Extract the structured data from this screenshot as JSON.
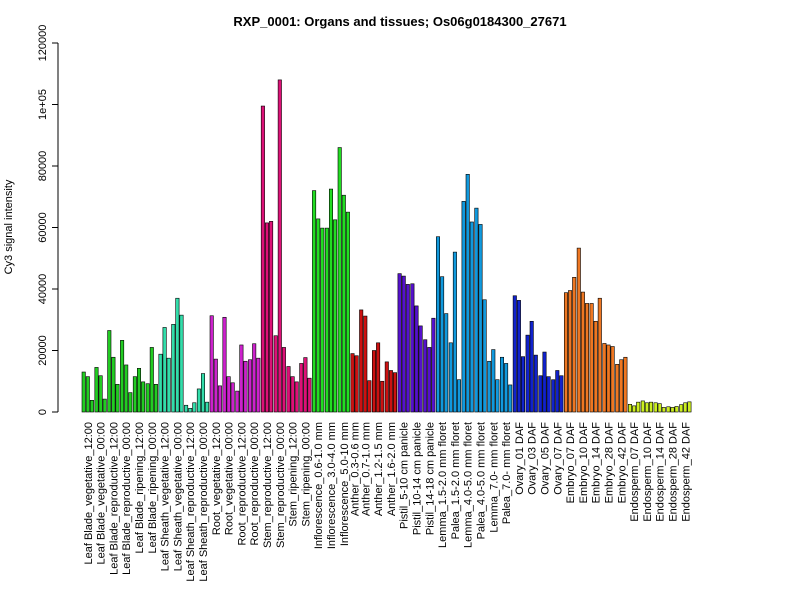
{
  "chart_data": {
    "type": "bar",
    "title": "RXP_0001: Organs and tissues; Os06g0184300_27671",
    "xlabel": "",
    "ylabel": "Cy3 signal intensity",
    "ylim": [
      0,
      120000
    ],
    "yticks": [
      {
        "value": 0,
        "label": "0"
      },
      {
        "value": 20000,
        "label": "20000"
      },
      {
        "value": 40000,
        "label": "40000"
      },
      {
        "value": 60000,
        "label": "60000"
      },
      {
        "value": 80000,
        "label": "80000"
      },
      {
        "value": 100000,
        "label": "1e+05"
      },
      {
        "value": 120000,
        "label": "120000"
      }
    ],
    "grid": false,
    "legend": "none",
    "groups": [
      {
        "color": "#22cc22",
        "values": [
          13000,
          11500,
          3800
        ],
        "label": "Leaf Blade_vegetative_12:00"
      },
      {
        "color": "#22cc22",
        "values": [
          14500,
          11800,
          4200
        ],
        "label": "Leaf Blade_vegetative_00:00"
      },
      {
        "color": "#22cc22",
        "values": [
          26500,
          17800,
          9000
        ],
        "label": "Leaf Blade_reproductive_12:00"
      },
      {
        "color": "#22cc22",
        "values": [
          23300,
          15300,
          6300
        ],
        "label": "Leaf Blade_reproductive_00:00"
      },
      {
        "color": "#22cc22",
        "values": [
          11500,
          14200,
          9800
        ],
        "label": "Leaf Blade_ripening_12:00"
      },
      {
        "color": "#22cc22",
        "values": [
          9200,
          21000,
          9000
        ],
        "label": "Leaf Blade_ripening_00:00"
      },
      {
        "color": "#33ddaa",
        "values": [
          18800,
          27500,
          17500
        ],
        "label": "Leaf Sheath_vegetative_12:00"
      },
      {
        "color": "#33ddaa",
        "values": [
          28500,
          37000,
          31500
        ],
        "label": "Leaf Sheath_vegetative_00:00"
      },
      {
        "color": "#33ddaa",
        "values": [
          2200,
          1200,
          3000
        ],
        "label": "Leaf Sheath_reproductive_12:00"
      },
      {
        "color": "#33ddaa",
        "values": [
          7500,
          12500,
          3200
        ],
        "label": "Leaf Sheath_reproductive_00:00"
      },
      {
        "color": "#cc22cc",
        "values": [
          31300,
          17200,
          8500
        ],
        "label": "Root_vegetative_12:00"
      },
      {
        "color": "#cc22cc",
        "values": [
          30800,
          11500,
          9500
        ],
        "label": "Root_vegetative_00:00"
      },
      {
        "color": "#cc22cc",
        "values": [
          6800,
          21800,
          16500
        ],
        "label": "Root_reproductive_12:00"
      },
      {
        "color": "#cc22cc",
        "values": [
          17000,
          22200,
          17500
        ],
        "label": "Root_reproductive_00:00"
      },
      {
        "color": "#dd1177",
        "values": [
          99500,
          61500,
          62000
        ],
        "label": "Stem_reproductive_12:00"
      },
      {
        "color": "#dd1177",
        "values": [
          24800,
          108000,
          21000
        ],
        "label": "Stem_reproductive_00:00"
      },
      {
        "color": "#dd1177",
        "values": [
          14800,
          11500,
          9800
        ],
        "label": "Stem_ripening_12:00"
      },
      {
        "color": "#dd1177",
        "values": [
          15800,
          17700,
          11000
        ],
        "label": "Stem_ripening_00:00"
      },
      {
        "color": "#22dd22",
        "values": [
          72000,
          62800,
          59800
        ],
        "label": "Inflorescence_0.6-1.0 mm"
      },
      {
        "color": "#22dd22",
        "values": [
          59800,
          72500,
          62500
        ],
        "label": "Inflorescence_3.0-4.0 mm"
      },
      {
        "color": "#22dd22",
        "values": [
          86000,
          70500,
          65000
        ],
        "label": "Inflorescence_5.0-10 mm"
      },
      {
        "color": "#cc1111",
        "values": [
          19000,
          18300
        ],
        "label": "Anther_0.3-0.6 mm"
      },
      {
        "color": "#cc1111",
        "values": [
          33200,
          31200,
          10200
        ],
        "label": "Anther_0.7-1.0 mm"
      },
      {
        "color": "#cc1111",
        "values": [
          20000,
          22500,
          10000
        ],
        "label": "Anther_1.2-1.5 mm"
      },
      {
        "color": "#cc1111",
        "values": [
          16300,
          13500,
          12800
        ],
        "label": "Anther_1.6-2.0 mm"
      },
      {
        "color": "#5511cc",
        "values": [
          45000,
          44200,
          41500
        ],
        "label": "Pistil_5-10 cm panicle"
      },
      {
        "color": "#5511cc",
        "values": [
          41700,
          34500,
          28000
        ],
        "label": "Pistil_10-14 cm panicle"
      },
      {
        "color": "#5511cc",
        "values": [
          23500,
          21000,
          30500
        ],
        "label": "Pistil_14-18 cm panicle"
      },
      {
        "color": "#1199dd",
        "values": [
          57000,
          44000,
          32000
        ],
        "label": "Lemma_1.5-2.0 mm floret"
      },
      {
        "color": "#1199dd",
        "values": [
          22500,
          52000,
          10500
        ],
        "label": "Palea_1.5-2.0 mm floret"
      },
      {
        "color": "#1199dd",
        "values": [
          68500,
          77300,
          61800
        ],
        "label": "Lemma_4.0-5.0 mm floret"
      },
      {
        "color": "#1199dd",
        "values": [
          66300,
          61000,
          36500
        ],
        "label": "Palea_4.0-5.0 mm floret"
      },
      {
        "color": "#1199dd",
        "values": [
          16500,
          20300,
          10500
        ],
        "label": "Lemma_7.0- mm floret"
      },
      {
        "color": "#1199dd",
        "values": [
          17800,
          15800,
          8800
        ],
        "label": "Palea_7.0- mm floret"
      },
      {
        "color": "#1122cc",
        "values": [
          37800,
          36300,
          18000
        ],
        "label": "Ovary_01 DAF"
      },
      {
        "color": "#1122cc",
        "values": [
          25000,
          29500,
          18500
        ],
        "label": "Ovary_03 DAF"
      },
      {
        "color": "#1122cc",
        "values": [
          11800,
          19500,
          11500
        ],
        "label": "Ovary_05 DAF"
      },
      {
        "color": "#1122cc",
        "values": [
          10500,
          13500,
          11800
        ],
        "label": "Ovary_07 DAF"
      },
      {
        "color": "#ee7722",
        "values": [
          38800,
          39500,
          43800
        ],
        "label": "Embryo_07 DAF"
      },
      {
        "color": "#ee7722",
        "values": [
          53300,
          39000,
          35300
        ],
        "label": "Embryo_10 DAF"
      },
      {
        "color": "#ee7722",
        "values": [
          35300,
          29500,
          37000
        ],
        "label": "Embryo_14 DAF"
      },
      {
        "color": "#ee7722",
        "values": [
          22300,
          21800,
          21300
        ],
        "label": "Embryo_28 DAF"
      },
      {
        "color": "#ee7722",
        "values": [
          15500,
          17000,
          17800
        ],
        "label": "Embryo_42 DAF"
      },
      {
        "color": "#ccee22",
        "values": [
          2500,
          2000,
          3200
        ],
        "label": "Endosperm_07 DAF"
      },
      {
        "color": "#ccee22",
        "values": [
          3600,
          3000,
          3200
        ],
        "label": "Endosperm_10 DAF"
      },
      {
        "color": "#ccee22",
        "values": [
          3000,
          2700,
          1500
        ],
        "label": "Endosperm_14 DAF"
      },
      {
        "color": "#ccee22",
        "values": [
          1700,
          1500,
          1800
        ],
        "label": "Endosperm_28 DAF"
      },
      {
        "color": "#ccee22",
        "values": [
          2400,
          3000,
          3300
        ],
        "label": "Endosperm_42 DAF"
      }
    ]
  }
}
